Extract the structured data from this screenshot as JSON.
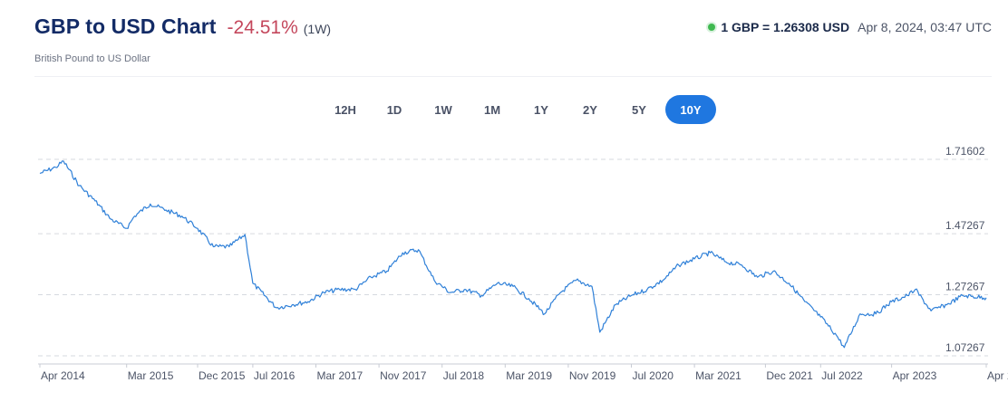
{
  "header": {
    "title": "GBP to USD Chart",
    "change": "-24.51%",
    "period": "(1W)",
    "subtitle": "British Pound to US Dollar",
    "rate_text": "1 GBP = 1.26308 USD",
    "rate_time": "Apr 8, 2024, 03:47 UTC"
  },
  "ranges": [
    "12H",
    "1D",
    "1W",
    "1M",
    "1Y",
    "2Y",
    "5Y",
    "10Y"
  ],
  "active_range": "10Y",
  "colors": {
    "line": "#2f80d8",
    "accent": "#1f77e0",
    "negative": "#c4475c",
    "live": "#3fb950"
  },
  "chart_data": {
    "type": "line",
    "title": "GBP to USD Chart",
    "xlabel": "",
    "ylabel": "",
    "y_ticks": [
      "1.71602",
      "1.47267",
      "1.27267",
      "1.07267"
    ],
    "ylim": [
      1.07267,
      1.71602
    ],
    "x_ticks": [
      "Apr 2014",
      "Mar 2015",
      "Dec 2015",
      "Jul 2016",
      "Mar 2017",
      "Nov 2017",
      "Jul 2018",
      "Mar 2019",
      "Nov 2019",
      "Jul 2020",
      "Mar 2021",
      "Dec 2021",
      "Jul 2022",
      "Apr 2023",
      "Apr 2024"
    ],
    "grid": true,
    "series": [
      {
        "x": [
          "2014-04",
          "2014-06",
          "2014-07",
          "2014-09",
          "2014-11",
          "2015-01",
          "2015-03",
          "2015-04",
          "2015-06",
          "2015-08",
          "2015-10",
          "2015-12",
          "2016-02",
          "2016-04",
          "2016-06",
          "2016-07",
          "2016-10",
          "2016-12",
          "2017-02",
          "2017-04",
          "2017-06",
          "2017-08",
          "2017-10",
          "2017-12",
          "2018-02",
          "2018-04",
          "2018-06",
          "2018-08",
          "2018-10",
          "2018-12",
          "2019-02",
          "2019-04",
          "2019-06",
          "2019-08",
          "2019-10",
          "2019-12",
          "2020-02",
          "2020-03",
          "2020-05",
          "2020-07",
          "2020-09",
          "2020-11",
          "2021-01",
          "2021-03",
          "2021-05",
          "2021-07",
          "2021-09",
          "2021-11",
          "2022-01",
          "2022-03",
          "2022-05",
          "2022-07",
          "2022-09",
          "2022-10",
          "2022-12",
          "2023-02",
          "2023-04",
          "2023-06",
          "2023-07",
          "2023-09",
          "2023-11",
          "2024-01",
          "2024-04"
        ],
        "values": [
          1.67,
          1.69,
          1.71,
          1.63,
          1.58,
          1.52,
          1.49,
          1.53,
          1.57,
          1.55,
          1.53,
          1.49,
          1.43,
          1.43,
          1.47,
          1.31,
          1.23,
          1.24,
          1.25,
          1.28,
          1.29,
          1.29,
          1.33,
          1.35,
          1.41,
          1.42,
          1.32,
          1.28,
          1.29,
          1.27,
          1.31,
          1.3,
          1.26,
          1.21,
          1.28,
          1.32,
          1.3,
          1.15,
          1.24,
          1.27,
          1.29,
          1.32,
          1.37,
          1.39,
          1.41,
          1.38,
          1.37,
          1.33,
          1.35,
          1.31,
          1.25,
          1.2,
          1.14,
          1.1,
          1.21,
          1.21,
          1.25,
          1.27,
          1.29,
          1.22,
          1.24,
          1.27,
          1.263
        ]
      }
    ]
  }
}
